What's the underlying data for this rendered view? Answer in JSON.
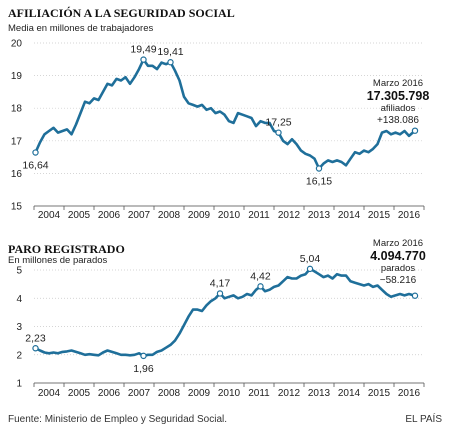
{
  "colors": {
    "line": "#1f6f9a",
    "marker": "#1f6f9a",
    "axis": "#555555",
    "grid": "#c8c8c8",
    "text": "#222222",
    "bold_text": "#111111"
  },
  "footer": {
    "source": "Fuente: Ministerio de Empleo y Seguridad Social.",
    "brand": "EL PAÍS"
  },
  "chart_data": [
    {
      "type": "line",
      "title": "AFILIACIÓN A LA SEGURIDAD SOCIAL",
      "subtitle": "Media en millones de trabajadores",
      "xlabel": "",
      "ylabel": "",
      "ylim": [
        15,
        20
      ],
      "yticks": [
        15,
        16,
        17,
        18,
        19,
        20
      ],
      "xlim": [
        2003.5,
        2016.5
      ],
      "xticks": [
        "2004",
        "2005",
        "2006",
        "2007",
        "2008",
        "2009",
        "2010",
        "2011",
        "2012",
        "2013",
        "2014",
        "2015",
        "2016"
      ],
      "grid": "horizontal",
      "series": [
        {
          "x": [
            2003.55,
            2003.7,
            2003.85,
            2004.0,
            2004.15,
            2004.3,
            2004.45,
            2004.6,
            2004.75,
            2004.9,
            2005.05,
            2005.2,
            2005.35,
            2005.5,
            2005.65,
            2005.8,
            2005.95,
            2006.1,
            2006.25,
            2006.4,
            2006.55,
            2006.7,
            2006.85,
            2007.0,
            2007.15,
            2007.3,
            2007.45,
            2007.6,
            2007.75,
            2007.9,
            2008.05,
            2008.2,
            2008.35,
            2008.5,
            2008.65,
            2008.8,
            2008.95,
            2009.1,
            2009.25,
            2009.4,
            2009.55,
            2009.7,
            2009.85,
            2010.0,
            2010.15,
            2010.3,
            2010.45,
            2010.6,
            2010.75,
            2010.9,
            2011.05,
            2011.2,
            2011.35,
            2011.5,
            2011.65,
            2011.8,
            2011.95,
            2012.1,
            2012.25,
            2012.4,
            2012.55,
            2012.7,
            2012.85,
            2013.0,
            2013.15,
            2013.3,
            2013.45,
            2013.6,
            2013.75,
            2013.9,
            2014.05,
            2014.2,
            2014.35,
            2014.5,
            2014.65,
            2014.8,
            2014.95,
            2015.1,
            2015.25,
            2015.4,
            2015.55,
            2015.7,
            2015.85,
            2016.0,
            2016.2
          ],
          "values": [
            16.64,
            16.95,
            17.2,
            17.3,
            17.4,
            17.25,
            17.3,
            17.35,
            17.2,
            17.5,
            17.85,
            18.2,
            18.15,
            18.3,
            18.25,
            18.5,
            18.75,
            18.7,
            18.9,
            18.85,
            18.95,
            18.75,
            18.95,
            19.2,
            19.49,
            19.3,
            19.3,
            19.2,
            19.4,
            19.35,
            19.41,
            19.15,
            18.85,
            18.35,
            18.15,
            18.1,
            18.05,
            18.1,
            17.95,
            18.0,
            17.85,
            17.9,
            17.8,
            17.6,
            17.55,
            17.85,
            17.8,
            17.75,
            17.7,
            17.45,
            17.6,
            17.55,
            17.55,
            17.3,
            17.25,
            17.0,
            16.9,
            17.05,
            16.9,
            16.7,
            16.6,
            16.55,
            16.45,
            16.15,
            16.3,
            16.4,
            16.35,
            16.4,
            16.35,
            16.25,
            16.45,
            16.65,
            16.6,
            16.7,
            16.65,
            16.75,
            16.9,
            17.25,
            17.3,
            17.2,
            17.25,
            17.2,
            17.3,
            17.15,
            17.31
          ]
        }
      ],
      "annotations": [
        {
          "x": 2003.55,
          "y": 16.64,
          "text": "16,64",
          "pos": "below"
        },
        {
          "x": 2007.15,
          "y": 19.49,
          "text": "19,49",
          "pos": "above"
        },
        {
          "x": 2008.05,
          "y": 19.41,
          "text": "19,41",
          "pos": "above"
        },
        {
          "x": 2011.65,
          "y": 17.25,
          "text": "17,25",
          "pos": "above"
        },
        {
          "x": 2013.0,
          "y": 16.15,
          "text": "16,15",
          "pos": "below"
        },
        {
          "x": 2016.2,
          "y": 17.31,
          "text": "",
          "pos": "none"
        }
      ],
      "callout": {
        "date": "Marzo 2016",
        "value": "17.305.798",
        "unit": "afiliados",
        "change": "+138.086"
      }
    },
    {
      "type": "line",
      "title": "PARO REGISTRADO",
      "subtitle": "En millones de parados",
      "xlabel": "",
      "ylabel": "",
      "ylim": [
        1,
        5
      ],
      "yticks": [
        1,
        2,
        3,
        4,
        5
      ],
      "xlim": [
        2003.5,
        2016.5
      ],
      "xticks": [
        "2004",
        "2005",
        "2006",
        "2007",
        "2008",
        "2009",
        "2010",
        "2011",
        "2012",
        "2013",
        "2014",
        "2015",
        "2016"
      ],
      "grid": "horizontal",
      "series": [
        {
          "x": [
            2003.55,
            2003.7,
            2003.85,
            2004.0,
            2004.15,
            2004.3,
            2004.45,
            2004.6,
            2004.75,
            2004.9,
            2005.05,
            2005.2,
            2005.35,
            2005.5,
            2005.65,
            2005.8,
            2005.95,
            2006.1,
            2006.25,
            2006.4,
            2006.55,
            2006.7,
            2006.85,
            2007.0,
            2007.15,
            2007.3,
            2007.45,
            2007.6,
            2007.75,
            2007.9,
            2008.05,
            2008.2,
            2008.35,
            2008.5,
            2008.65,
            2008.8,
            2008.95,
            2009.1,
            2009.25,
            2009.4,
            2009.55,
            2009.7,
            2009.85,
            2010.0,
            2010.15,
            2010.3,
            2010.45,
            2010.6,
            2010.75,
            2010.9,
            2011.05,
            2011.2,
            2011.35,
            2011.5,
            2011.65,
            2011.8,
            2011.95,
            2012.1,
            2012.25,
            2012.4,
            2012.55,
            2012.7,
            2012.85,
            2013.0,
            2013.15,
            2013.3,
            2013.45,
            2013.6,
            2013.75,
            2013.9,
            2014.05,
            2014.2,
            2014.35,
            2014.5,
            2014.65,
            2014.8,
            2014.95,
            2015.1,
            2015.25,
            2015.4,
            2015.55,
            2015.7,
            2015.85,
            2016.0,
            2016.2
          ],
          "values": [
            2.23,
            2.15,
            2.08,
            2.05,
            2.08,
            2.05,
            2.1,
            2.12,
            2.15,
            2.1,
            2.05,
            2.0,
            2.02,
            2.0,
            1.98,
            2.08,
            2.15,
            2.1,
            2.05,
            2.0,
            2.0,
            1.98,
            2.0,
            2.05,
            1.96,
            2.0,
            2.0,
            2.1,
            2.15,
            2.25,
            2.35,
            2.5,
            2.75,
            3.05,
            3.35,
            3.6,
            3.6,
            3.55,
            3.75,
            3.9,
            4.0,
            4.17,
            4.0,
            4.05,
            4.1,
            4.0,
            4.05,
            4.15,
            4.1,
            4.3,
            4.42,
            4.25,
            4.3,
            4.4,
            4.45,
            4.6,
            4.75,
            4.7,
            4.7,
            4.8,
            4.85,
            5.04,
            4.95,
            4.85,
            4.75,
            4.8,
            4.7,
            4.85,
            4.8,
            4.8,
            4.6,
            4.55,
            4.5,
            4.45,
            4.5,
            4.4,
            4.45,
            4.3,
            4.15,
            4.05,
            4.1,
            4.15,
            4.1,
            4.15,
            4.09
          ]
        }
      ],
      "annotations": [
        {
          "x": 2003.55,
          "y": 2.23,
          "text": "2,23",
          "pos": "above"
        },
        {
          "x": 2007.15,
          "y": 1.96,
          "text": "1,96",
          "pos": "below"
        },
        {
          "x": 2009.7,
          "y": 4.17,
          "text": "4,17",
          "pos": "above"
        },
        {
          "x": 2011.05,
          "y": 4.42,
          "text": "4,42",
          "pos": "above"
        },
        {
          "x": 2012.7,
          "y": 5.04,
          "text": "5,04",
          "pos": "above"
        },
        {
          "x": 2016.2,
          "y": 4.09,
          "text": "",
          "pos": "none"
        }
      ],
      "callout": {
        "date": "Marzo 2016",
        "value": "4.094.770",
        "unit": "parados",
        "change": "−58.216"
      }
    }
  ]
}
